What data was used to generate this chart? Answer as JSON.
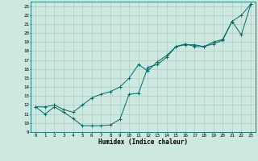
{
  "xlabel": "Humidex (Indice chaleur)",
  "background_color": "#cce8e0",
  "line_color": "#006868",
  "grid_color": "#aaccc4",
  "xlim": [
    -0.5,
    23.5
  ],
  "ylim": [
    9,
    23.5
  ],
  "yticks": [
    9,
    10,
    11,
    12,
    13,
    14,
    15,
    16,
    17,
    18,
    19,
    20,
    21,
    22,
    23
  ],
  "xticks": [
    0,
    1,
    2,
    3,
    4,
    5,
    6,
    7,
    8,
    9,
    10,
    11,
    12,
    13,
    14,
    15,
    16,
    17,
    18,
    19,
    20,
    21,
    22,
    23
  ],
  "line1_x": [
    0,
    1,
    2,
    3,
    4,
    5,
    6,
    7,
    8,
    9,
    10,
    11,
    12,
    13,
    14,
    15,
    16,
    17,
    18,
    19,
    20,
    21,
    22,
    23
  ],
  "line1_y": [
    11.8,
    11.0,
    11.8,
    11.2,
    10.5,
    9.7,
    9.7,
    9.7,
    9.8,
    10.4,
    13.2,
    13.3,
    16.2,
    16.5,
    17.3,
    18.5,
    18.7,
    18.7,
    18.5,
    19.0,
    19.3,
    21.3,
    19.8,
    23.2
  ],
  "line2_x": [
    0,
    1,
    2,
    3,
    4,
    5,
    6,
    7,
    8,
    9,
    10,
    11,
    12,
    13,
    14,
    15,
    16,
    17,
    18,
    19,
    20,
    21,
    22,
    23
  ],
  "line2_y": [
    11.8,
    11.8,
    12.0,
    11.5,
    11.2,
    12.0,
    12.8,
    13.2,
    13.5,
    14.0,
    15.0,
    16.5,
    15.8,
    16.8,
    17.5,
    18.5,
    18.8,
    18.5,
    18.5,
    18.8,
    19.2,
    21.3,
    22.0,
    23.2
  ]
}
